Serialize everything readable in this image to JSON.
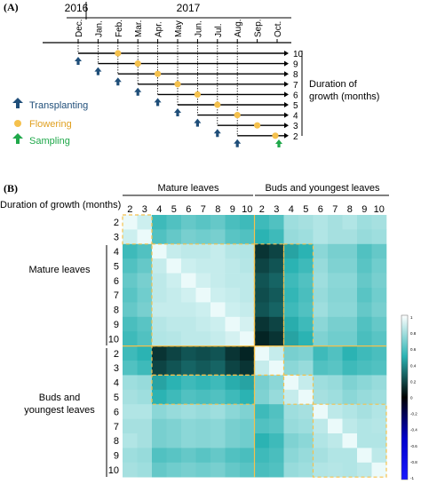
{
  "panel_a": {
    "label": "(A)",
    "years": [
      "2016",
      "2017"
    ],
    "months": [
      "Dec.",
      "Jan.",
      "Feb.",
      "Mar.",
      "Apr.",
      "May",
      "Jun.",
      "Jul.",
      "Aug.",
      "Sep.",
      "Oct."
    ],
    "durations": [
      "10",
      "9",
      "8",
      "7",
      "6",
      "5",
      "4",
      "3",
      "2"
    ],
    "duration_label_line1": "Duration of",
    "duration_label_line2": "growth (months)",
    "legend": [
      {
        "label": "Transplanting",
        "icon": "arrow-up-icon",
        "color": "#1f4e79"
      },
      {
        "label": "Flowering",
        "icon": "dot-icon",
        "color": "#f5c14d"
      },
      {
        "label": "Sampling",
        "icon": "arrow-up-icon",
        "color": "#1fa84a"
      }
    ]
  },
  "panel_b": {
    "label": "(B)",
    "group_labels": [
      "Mature leaves",
      "Buds and youngest leaves"
    ],
    "row_group_labels": [
      "Mature leaves",
      "Buds and youngest leaves"
    ],
    "axis_title": "Duration of growth (months)",
    "col_ticks": [
      "2",
      "3",
      "4",
      "5",
      "6",
      "7",
      "8",
      "9",
      "10",
      "2",
      "3",
      "4",
      "5",
      "6",
      "7",
      "8",
      "9",
      "10"
    ],
    "row_ticks": [
      "2",
      "3",
      "4",
      "5",
      "6",
      "7",
      "8",
      "9",
      "10",
      "2",
      "3",
      "4",
      "5",
      "6",
      "7",
      "8",
      "9",
      "10"
    ],
    "colorbar_ticks": [
      "1",
      "0.8",
      "0.6",
      "0.4",
      "0.2",
      "0",
      "-0.2",
      "-0.4",
      "-0.6",
      "-0.8",
      "-1"
    ],
    "colors": {
      "high": "#ffffff",
      "mid_pos": "#2bb3b3",
      "zero": "#000000",
      "neg": "#0000ff",
      "grid_dash": "#f5c14d"
    }
  },
  "chart_data": {
    "type": "heatmap",
    "range": [
      -1,
      1
    ],
    "rows": [
      "2",
      "3",
      "4",
      "5",
      "6",
      "7",
      "8",
      "9",
      "10",
      "2",
      "3",
      "4",
      "5",
      "6",
      "7",
      "8",
      "9",
      "10"
    ],
    "cols": [
      "2",
      "3",
      "4",
      "5",
      "6",
      "7",
      "8",
      "9",
      "10",
      "2",
      "3",
      "4",
      "5",
      "6",
      "7",
      "8",
      "9",
      "10"
    ],
    "values": [
      [
        1.0,
        0.92,
        0.55,
        0.6,
        0.65,
        0.62,
        0.65,
        0.58,
        0.55,
        0.55,
        0.6,
        0.8,
        0.82,
        0.85,
        0.82,
        0.85,
        0.8,
        0.82
      ],
      [
        0.92,
        1.0,
        0.6,
        0.65,
        0.7,
        0.68,
        0.7,
        0.62,
        0.6,
        0.5,
        0.55,
        0.78,
        0.8,
        0.85,
        0.82,
        0.82,
        0.78,
        0.8
      ],
      [
        0.55,
        0.6,
        1.0,
        0.9,
        0.88,
        0.88,
        0.9,
        0.86,
        0.85,
        0.1,
        0.15,
        0.45,
        0.5,
        0.75,
        0.7,
        0.7,
        0.6,
        0.65
      ],
      [
        0.6,
        0.65,
        0.9,
        1.0,
        0.92,
        0.9,
        0.9,
        0.88,
        0.86,
        0.15,
        0.2,
        0.5,
        0.55,
        0.78,
        0.72,
        0.72,
        0.62,
        0.68
      ],
      [
        0.65,
        0.7,
        0.88,
        0.92,
        1.0,
        0.93,
        0.9,
        0.88,
        0.88,
        0.2,
        0.25,
        0.55,
        0.6,
        0.8,
        0.75,
        0.75,
        0.65,
        0.7
      ],
      [
        0.62,
        0.68,
        0.88,
        0.9,
        0.93,
        1.0,
        0.92,
        0.9,
        0.88,
        0.18,
        0.22,
        0.52,
        0.58,
        0.78,
        0.74,
        0.74,
        0.62,
        0.68
      ],
      [
        0.65,
        0.7,
        0.9,
        0.9,
        0.9,
        0.92,
        1.0,
        0.92,
        0.9,
        0.2,
        0.25,
        0.55,
        0.6,
        0.8,
        0.75,
        0.75,
        0.65,
        0.7
      ],
      [
        0.58,
        0.62,
        0.86,
        0.88,
        0.88,
        0.9,
        0.92,
        1.0,
        0.94,
        0.1,
        0.15,
        0.48,
        0.55,
        0.75,
        0.7,
        0.7,
        0.6,
        0.65
      ],
      [
        0.55,
        0.6,
        0.85,
        0.86,
        0.88,
        0.88,
        0.9,
        0.94,
        1.0,
        0.05,
        0.1,
        0.45,
        0.5,
        0.72,
        0.68,
        0.68,
        0.58,
        0.62
      ],
      [
        0.55,
        0.5,
        0.1,
        0.15,
        0.2,
        0.18,
        0.2,
        0.1,
        0.05,
        1.0,
        0.9,
        0.7,
        0.72,
        0.55,
        0.6,
        0.5,
        0.55,
        0.58
      ],
      [
        0.6,
        0.55,
        0.15,
        0.2,
        0.25,
        0.22,
        0.25,
        0.15,
        0.1,
        0.9,
        1.0,
        0.75,
        0.78,
        0.6,
        0.62,
        0.55,
        0.58,
        0.6
      ],
      [
        0.8,
        0.78,
        0.45,
        0.5,
        0.55,
        0.52,
        0.55,
        0.48,
        0.45,
        0.7,
        0.75,
        1.0,
        0.9,
        0.8,
        0.78,
        0.72,
        0.75,
        0.78
      ],
      [
        0.82,
        0.8,
        0.5,
        0.55,
        0.6,
        0.58,
        0.6,
        0.55,
        0.5,
        0.72,
        0.78,
        0.9,
        1.0,
        0.82,
        0.8,
        0.75,
        0.78,
        0.8
      ],
      [
        0.85,
        0.85,
        0.75,
        0.78,
        0.8,
        0.78,
        0.8,
        0.75,
        0.72,
        0.55,
        0.6,
        0.8,
        0.82,
        1.0,
        0.88,
        0.85,
        0.82,
        0.85
      ],
      [
        0.82,
        0.82,
        0.7,
        0.72,
        0.75,
        0.74,
        0.75,
        0.7,
        0.68,
        0.6,
        0.62,
        0.78,
        0.8,
        0.88,
        1.0,
        0.88,
        0.85,
        0.86
      ],
      [
        0.85,
        0.82,
        0.7,
        0.72,
        0.75,
        0.74,
        0.75,
        0.7,
        0.68,
        0.5,
        0.55,
        0.72,
        0.75,
        0.85,
        0.88,
        1.0,
        0.85,
        0.85
      ],
      [
        0.8,
        0.78,
        0.6,
        0.62,
        0.65,
        0.62,
        0.65,
        0.6,
        0.58,
        0.55,
        0.58,
        0.75,
        0.78,
        0.82,
        0.85,
        0.85,
        1.0,
        0.88
      ],
      [
        0.82,
        0.8,
        0.65,
        0.68,
        0.7,
        0.68,
        0.7,
        0.65,
        0.62,
        0.58,
        0.6,
        0.78,
        0.8,
        0.85,
        0.86,
        0.85,
        0.88,
        1.0
      ]
    ]
  }
}
